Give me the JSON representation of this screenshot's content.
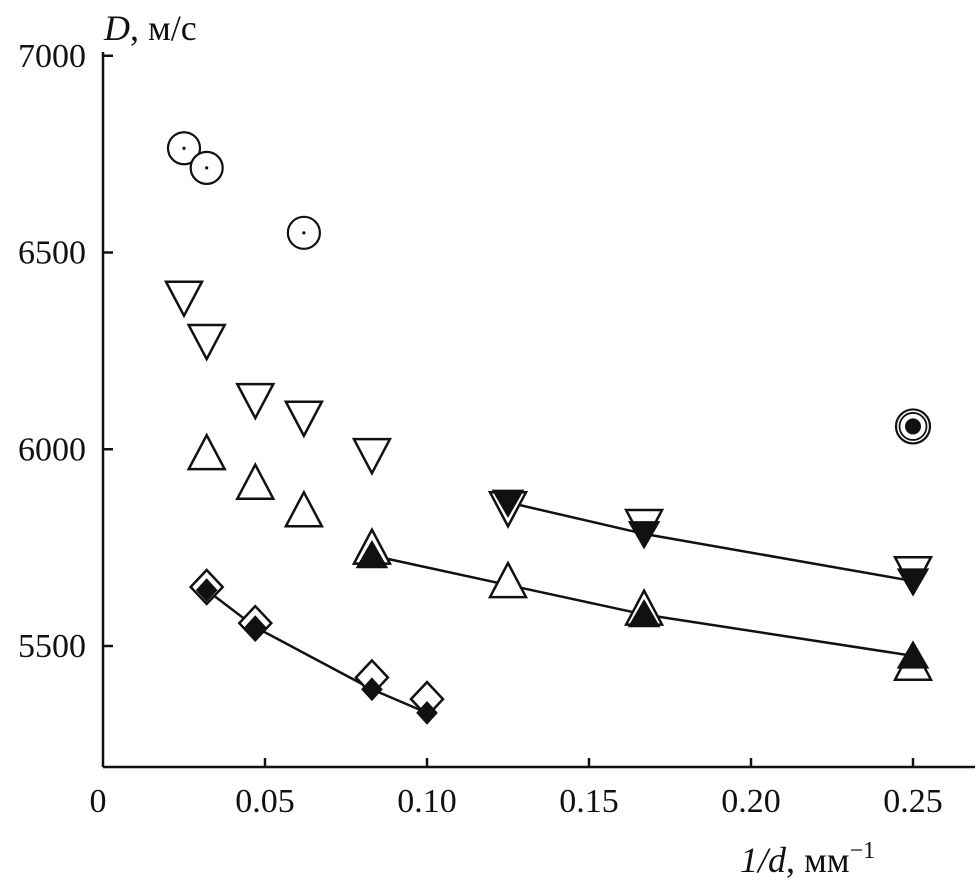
{
  "chart_data": {
    "type": "scatter",
    "title": "",
    "ylabel": {
      "var": "D",
      "unit": ", м/с"
    },
    "xlabel": {
      "var": "1/d",
      "unit": ", мм",
      "sup": "−1"
    },
    "xlim": [
      0,
      0.27
    ],
    "ylim": [
      5200,
      7000
    ],
    "xticks": [
      {
        "value": 0,
        "label": "0"
      },
      {
        "value": 0.05,
        "label": "0.05"
      },
      {
        "value": 0.1,
        "label": "0.10"
      },
      {
        "value": 0.15,
        "label": "0.15"
      },
      {
        "value": 0.2,
        "label": "0.20"
      },
      {
        "value": 0.25,
        "label": "0.25"
      }
    ],
    "yticks": [
      {
        "value": 5500,
        "label": "5500"
      },
      {
        "value": 6000,
        "label": "6000"
      },
      {
        "value": 6500,
        "label": "6500"
      },
      {
        "value": 7000,
        "label": "7000"
      }
    ],
    "grid": false,
    "series": [
      {
        "marker": "circle-dot",
        "line": false,
        "points": [
          [
            0.025,
            6765
          ],
          [
            0.032,
            6715
          ],
          [
            0.062,
            6550
          ]
        ]
      },
      {
        "marker": "circle-filled",
        "line": false,
        "points": [
          [
            0.25,
            6058
          ]
        ]
      },
      {
        "marker": "triangle-down-open",
        "line": false,
        "points": [
          [
            0.025,
            6385
          ],
          [
            0.032,
            6275
          ],
          [
            0.047,
            6125
          ],
          [
            0.062,
            6080
          ],
          [
            0.083,
            5985
          ]
        ]
      },
      {
        "marker": "triangle-up-open",
        "line": false,
        "points": [
          [
            0.032,
            5990
          ],
          [
            0.047,
            5915
          ],
          [
            0.062,
            5845
          ]
        ]
      },
      {
        "marker": "triangle-down-open",
        "line": false,
        "points": [
          [
            0.125,
            5850
          ],
          [
            0.167,
            5805
          ],
          [
            0.25,
            5685
          ]
        ]
      },
      {
        "marker": "triangle-down-filled",
        "line": true,
        "points": [
          [
            0.125,
            5865
          ],
          [
            0.167,
            5785
          ],
          [
            0.25,
            5665
          ]
        ]
      },
      {
        "marker": "triangle-up-open",
        "line": false,
        "points": [
          [
            0.083,
            5750
          ],
          [
            0.125,
            5665
          ],
          [
            0.167,
            5595
          ],
          [
            0.25,
            5455
          ]
        ]
      },
      {
        "marker": "triangle-up-filled",
        "line": true,
        "points": [
          [
            0.083,
            5730
          ],
          [
            0.167,
            5580
          ],
          [
            0.25,
            5475
          ]
        ]
      },
      {
        "marker": "diamond-open",
        "line": false,
        "points": [
          [
            0.032,
            5650
          ],
          [
            0.047,
            5558
          ],
          [
            0.083,
            5420
          ],
          [
            0.1,
            5365
          ]
        ]
      },
      {
        "marker": "diamond-filled",
        "line": true,
        "points": [
          [
            0.032,
            5642
          ],
          [
            0.047,
            5548
          ],
          [
            0.083,
            5390
          ],
          [
            0.1,
            5330
          ]
        ]
      }
    ]
  }
}
